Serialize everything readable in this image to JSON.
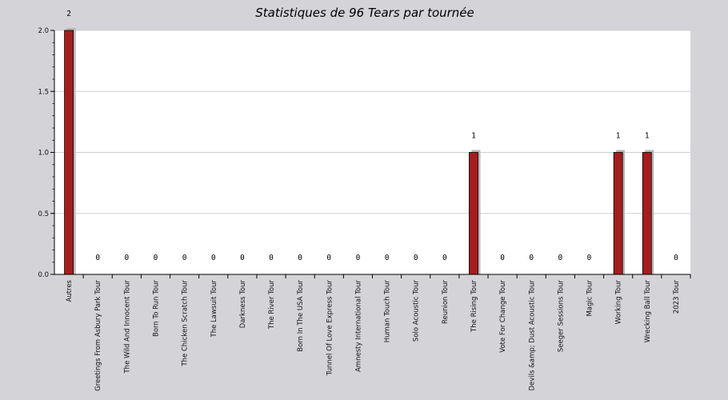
{
  "chart_data": {
    "type": "bar",
    "title": "Statistiques de 96 Tears par tournée",
    "xlabel": "",
    "ylabel": "",
    "ylim": [
      0,
      2
    ],
    "yticks": [
      "0.0",
      "0.5",
      "1.0",
      "1.5",
      "2.0"
    ],
    "grid": true,
    "legend": "none",
    "bar_color": "#a51d1d",
    "categories": [
      "Autres",
      "Greetings From Asbury Park Tour",
      "The Wild And Innocent Tour",
      "Born To Run Tour",
      "The Chicken Scratch Tour",
      "The Lawsuit Tour",
      "Darkness Tour",
      "The River Tour",
      "Born In The USA Tour",
      "Tunnel Of Love Express Tour",
      "Amnesty International Tour",
      "Human Touch Tour",
      "Solo Acoustic Tour",
      "Reunion Tour",
      "The Rising Tour",
      "Vote For Change Tour",
      "Devils &amp; Dust Acoustic Tour",
      "Seeger Sessions Tour",
      "Magic Tour",
      "Working Tour",
      "Wrecking Ball Tour",
      "2023 Tour"
    ],
    "values": [
      2,
      0,
      0,
      0,
      0,
      0,
      0,
      0,
      0,
      0,
      0,
      0,
      0,
      0,
      1,
      0,
      0,
      0,
      0,
      1,
      1,
      0
    ]
  }
}
